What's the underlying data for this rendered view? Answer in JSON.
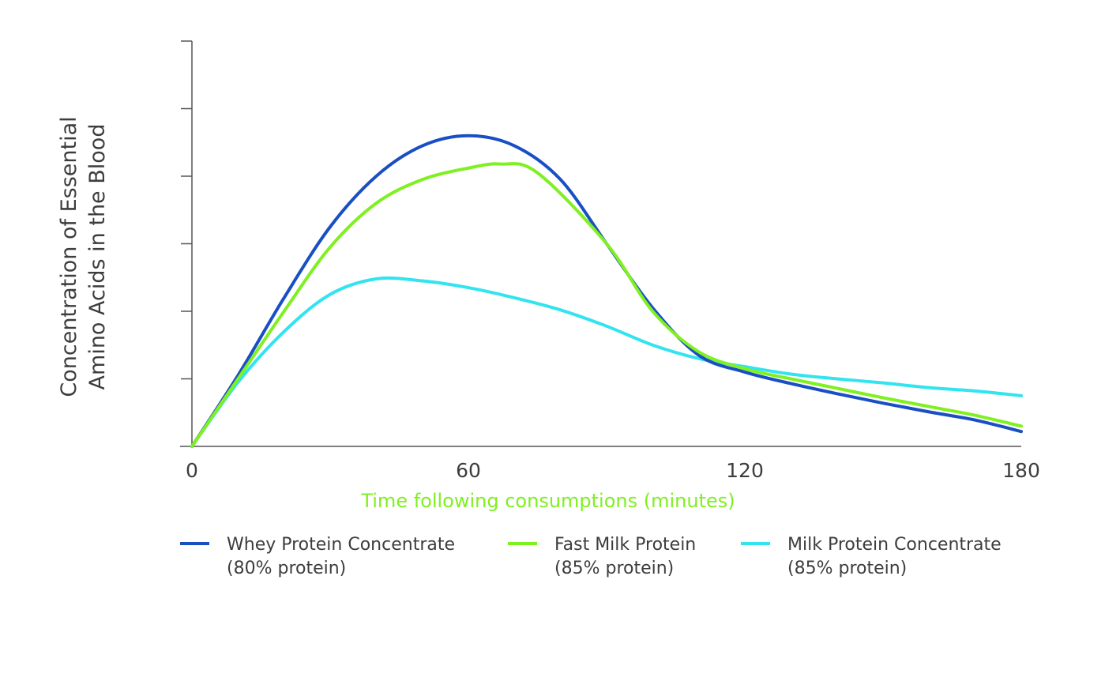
{
  "chart_data": {
    "type": "line",
    "title": "",
    "xlabel": "Time following consumptions (minutes)",
    "ylabel_lines": [
      "Concentration of Essential",
      "Amino Acids in the Blood"
    ],
    "xlim": [
      0,
      180
    ],
    "ylim": [
      0,
      6
    ],
    "x_ticks": [
      0,
      60,
      120,
      180
    ],
    "x_tick_labels": [
      "0",
      "60",
      "120",
      "180"
    ],
    "y_ticks": [
      1,
      2,
      3,
      4,
      5,
      6
    ],
    "y_tick_labels": [],
    "grid": false,
    "legend_position": "bottom",
    "series": [
      {
        "name": "Whey Protein Concentrate",
        "name_detail": "(80% protein)",
        "color": "#1a4fc4",
        "x": [
          0,
          10,
          20,
          30,
          40,
          50,
          60,
          70,
          80,
          90,
          100,
          110,
          120,
          130,
          140,
          150,
          160,
          170,
          180
        ],
        "y": [
          0,
          1.05,
          2.2,
          3.25,
          4.0,
          4.45,
          4.6,
          4.45,
          3.95,
          3.0,
          2.05,
          1.35,
          1.1,
          0.93,
          0.78,
          0.64,
          0.51,
          0.39,
          0.22
        ]
      },
      {
        "name": "Fast Milk Protein",
        "name_detail": "(85% protein)",
        "color": "#7ff020",
        "x": [
          0,
          10,
          20,
          30,
          40,
          50,
          60,
          67,
          75,
          90,
          100,
          110,
          120,
          130,
          140,
          150,
          160,
          170,
          180
        ],
        "y": [
          0,
          1.0,
          2.0,
          2.95,
          3.6,
          3.95,
          4.12,
          4.18,
          4.05,
          3.0,
          2.0,
          1.4,
          1.15,
          1.0,
          0.86,
          0.72,
          0.59,
          0.46,
          0.3
        ]
      },
      {
        "name": "Milk Protein Concentrate",
        "name_detail": "(85% protein)",
        "color": "#32e3f0",
        "x": [
          0,
          10,
          20,
          30,
          40,
          50,
          60,
          70,
          80,
          90,
          100,
          110,
          120,
          130,
          140,
          150,
          160,
          170,
          180
        ],
        "y": [
          0,
          0.95,
          1.7,
          2.25,
          2.48,
          2.45,
          2.35,
          2.2,
          2.02,
          1.78,
          1.5,
          1.3,
          1.18,
          1.07,
          1.0,
          0.94,
          0.87,
          0.82,
          0.75
        ]
      }
    ]
  }
}
